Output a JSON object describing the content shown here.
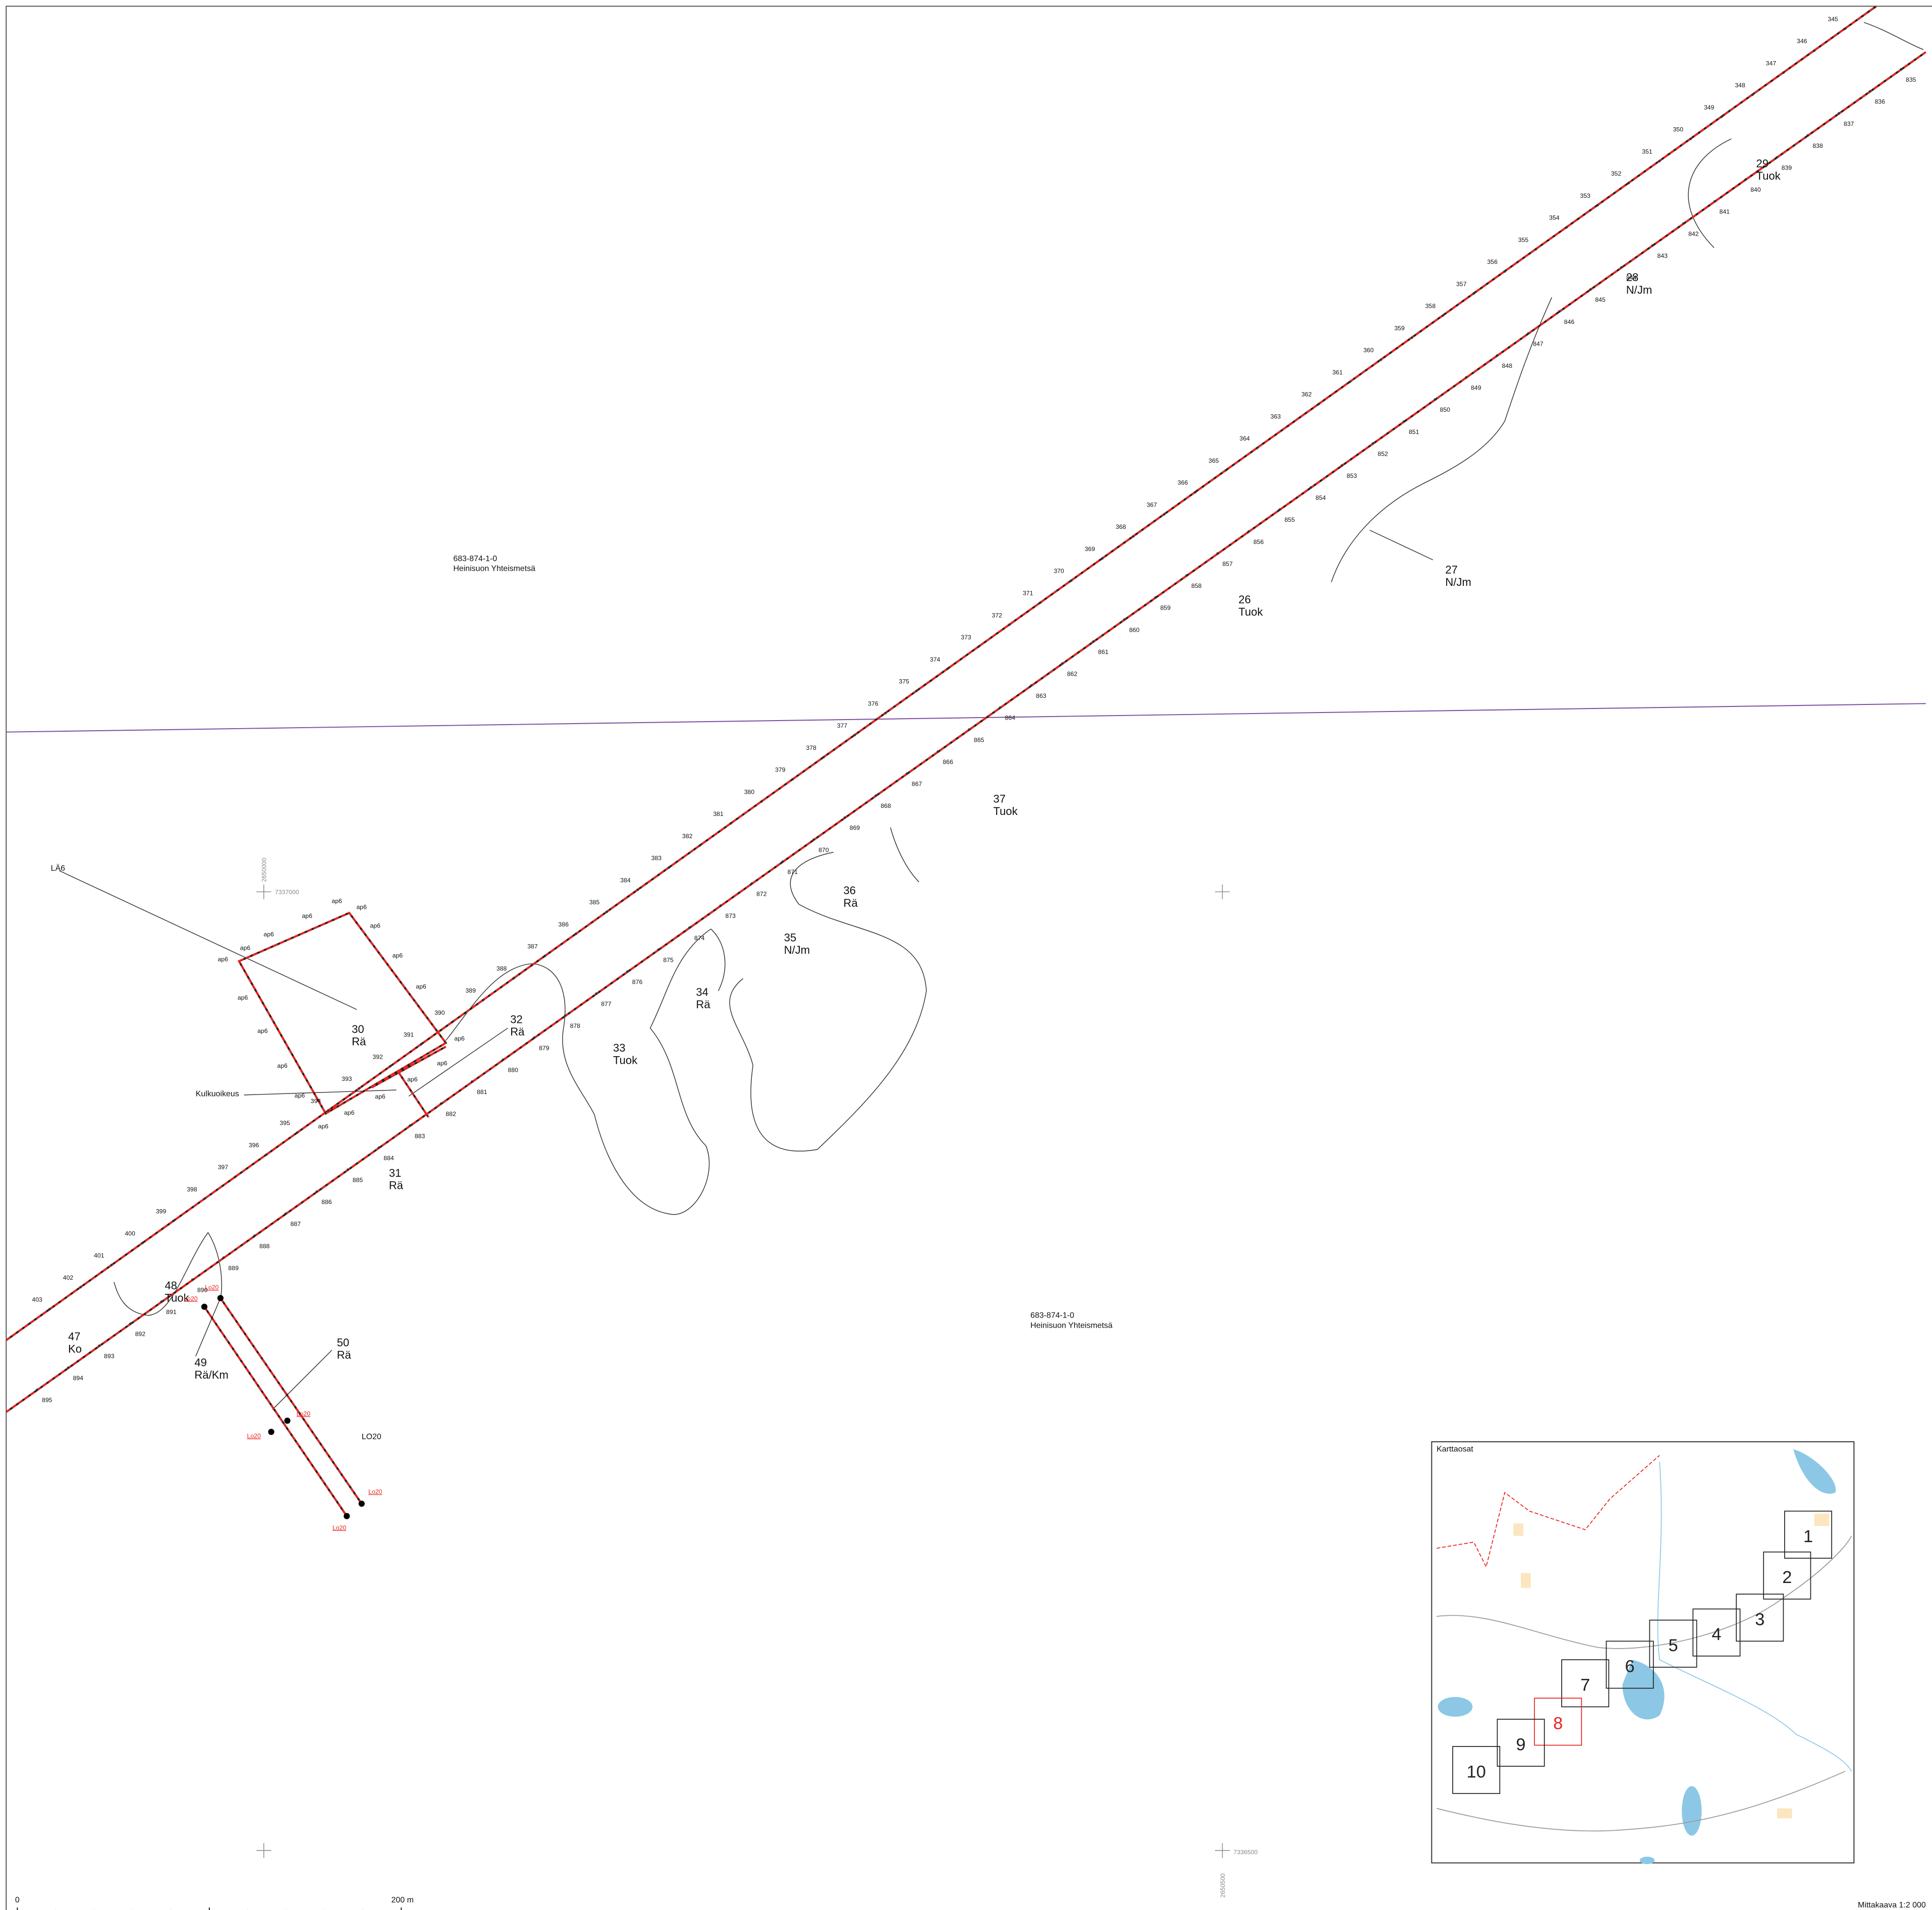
{
  "property_labels": [
    {
      "id": "683-874-1-0",
      "owner": "Heinisuon Yhteismetsä"
    },
    {
      "id": "683-874-1-0",
      "owner": "Heinisuon Yhteismetsä"
    }
  ],
  "stations": {
    "north": [
      "345",
      "346",
      "347",
      "348",
      "349",
      "350",
      "351",
      "352",
      "353",
      "354",
      "355",
      "356",
      "357",
      "358",
      "359",
      "360",
      "361",
      "362",
      "363",
      "364",
      "365",
      "366",
      "367",
      "368",
      "369",
      "370",
      "371",
      "372",
      "373",
      "374",
      "375",
      "376",
      "377",
      "378",
      "379",
      "380",
      "381",
      "382",
      "383",
      "384",
      "385",
      "386",
      "387",
      "388",
      "389",
      "390",
      "391",
      "392",
      "393",
      "394",
      "395",
      "396",
      "397",
      "398",
      "399",
      "400",
      "401",
      "402",
      "403"
    ],
    "south": [
      "835",
      "836",
      "837",
      "838",
      "839",
      "840",
      "841",
      "842",
      "843",
      "844",
      "845",
      "846",
      "847",
      "848",
      "849",
      "850",
      "851",
      "852",
      "853",
      "854",
      "855",
      "856",
      "857",
      "858",
      "859",
      "860",
      "861",
      "862",
      "863",
      "864",
      "865",
      "866",
      "867",
      "868",
      "869",
      "870",
      "871",
      "872",
      "873",
      "874",
      "875",
      "876",
      "877",
      "878",
      "879",
      "880",
      "881",
      "882",
      "883",
      "884",
      "885",
      "886",
      "887",
      "888",
      "889",
      "890",
      "891",
      "892",
      "893",
      "894",
      "895"
    ]
  },
  "compartments": [
    {
      "number": "29",
      "type": "Tuok"
    },
    {
      "number": "28",
      "type": "N/Jm"
    },
    {
      "number": "27",
      "type": "N/Jm"
    },
    {
      "number": "26",
      "type": "Tuok"
    },
    {
      "number": "37",
      "type": "Tuok"
    },
    {
      "number": "36",
      "type": "Rä"
    },
    {
      "number": "35",
      "type": "N/Jm"
    },
    {
      "number": "34",
      "type": "Rä"
    },
    {
      "number": "33",
      "type": "Tuok"
    },
    {
      "number": "32",
      "type": "Rä"
    },
    {
      "number": "30",
      "type": "Rä"
    },
    {
      "number": "31",
      "type": "Rä"
    },
    {
      "number": "48",
      "type": "Tuok"
    },
    {
      "number": "47",
      "type": "Ko"
    },
    {
      "number": "49",
      "type": "Rä/Km"
    },
    {
      "number": "50",
      "type": "Rä"
    }
  ],
  "road_labels": {
    "ap6": [
      "ap6",
      "ap6",
      "ap6",
      "ap6",
      "ap6",
      "ap6",
      "ap6",
      "ap6",
      "ap6",
      "ap6",
      "ap6",
      "ap6",
      "ap6",
      "ap6",
      "ap6",
      "ap6",
      "ap6",
      "ap6",
      "ap6"
    ],
    "lo20": [
      "Lo20",
      "Lo20",
      "Lo20",
      "Lo20",
      "Lo20",
      "Lo20"
    ]
  },
  "labels": {
    "la6": "LÄ6",
    "access": "Kulkuoikeus",
    "lo20": "LO20"
  },
  "coordinates": [
    "7337000",
    "2650000",
    "7336500",
    "2650500"
  ],
  "inset": {
    "title": "Karttaosat",
    "sheets": [
      "1",
      "2",
      "3",
      "4",
      "5",
      "6",
      "7",
      "8",
      "9",
      "10"
    ]
  },
  "scale": {
    "start": "0",
    "end": "200 m",
    "text": "Mittakaava 1:2 000"
  }
}
